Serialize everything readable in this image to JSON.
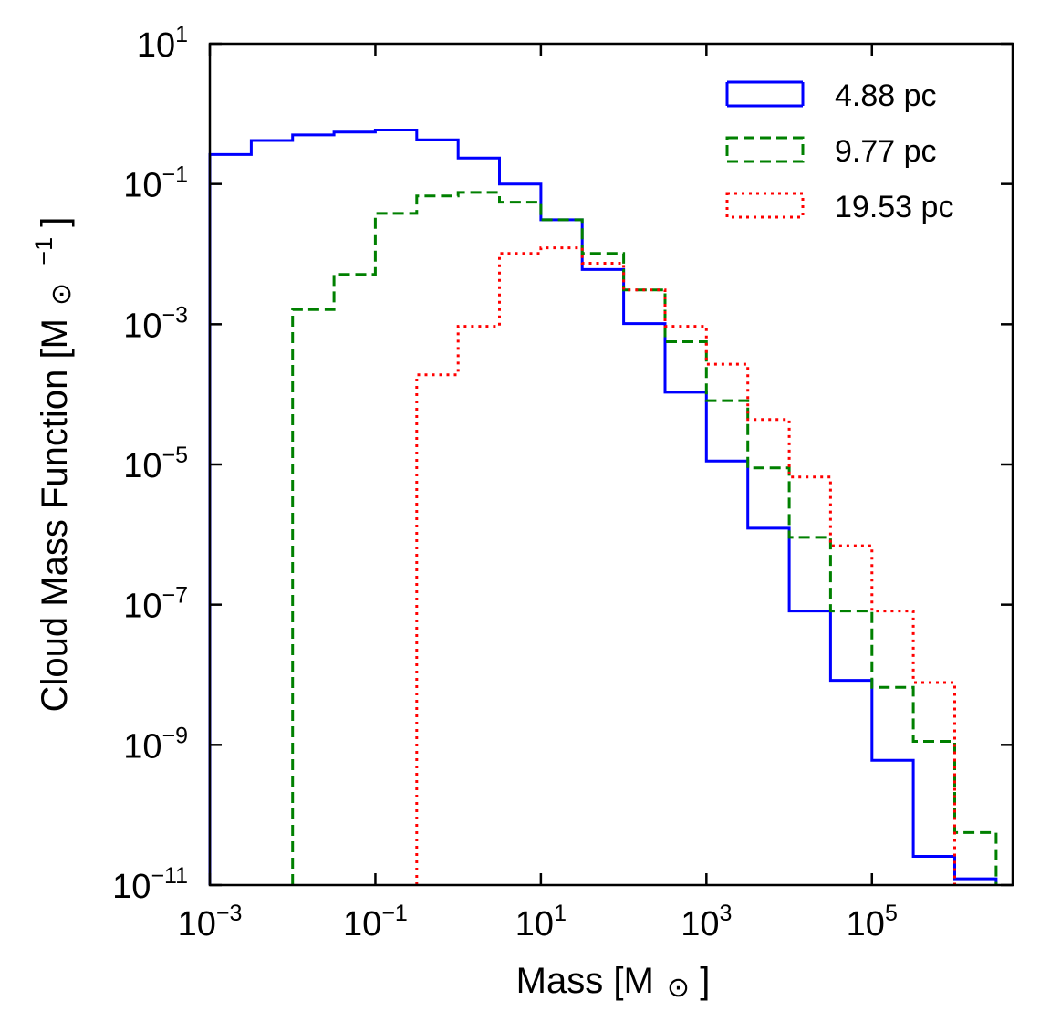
{
  "chart_data": {
    "type": "histogram-step",
    "xscale": "log",
    "yscale": "log",
    "xlim_exp": [
      -3,
      6.7
    ],
    "ylim_exp": [
      -11,
      1
    ],
    "x_ticks_exp": [
      -3,
      -1,
      1,
      3,
      5
    ],
    "y_ticks_exp": [
      -11,
      -9,
      -7,
      -5,
      -3,
      -1,
      1
    ],
    "tick_base": "10",
    "tick_minus": "−",
    "xlabel": "Mass [M",
    "xlabel_close": "]",
    "ylabel": "Cloud Mass Function [M",
    "ylabel_unit_exp": "−1",
    "ylabel_close": "]",
    "sun_symbol": "⊙",
    "legend_position": "top-right",
    "bin_width_dex": 0.5,
    "series": [
      {
        "name": "4.88 pc",
        "color": "#0000ff",
        "style": "solid",
        "start_exp": -3.0,
        "log_values": [
          -0.58,
          -0.38,
          -0.3,
          -0.26,
          -0.23,
          -0.37,
          -0.63,
          -1.0,
          -1.51,
          -2.22,
          -2.99,
          -3.97,
          -4.95,
          -5.91,
          -7.09,
          -8.08,
          -9.22,
          -10.59,
          -10.91
        ]
      },
      {
        "name": "9.77 pc",
        "color": "#008000",
        "style": "dashed",
        "start_exp": -2.0,
        "log_values": [
          -2.79,
          -2.29,
          -1.42,
          -1.17,
          -1.12,
          -1.26,
          -1.51,
          -1.99,
          -2.51,
          -3.25,
          -4.09,
          -5.05,
          -6.04,
          -7.09,
          -8.18,
          -8.95,
          -10.25
        ]
      },
      {
        "name": "19.53 pc",
        "color": "#ff0000",
        "style": "dotted",
        "start_exp": -0.5,
        "log_values": [
          -3.72,
          -3.03,
          -1.99,
          -1.91,
          -2.13,
          -2.51,
          -3.03,
          -3.57,
          -4.36,
          -5.18,
          -6.16,
          -7.09,
          -8.11
        ]
      }
    ]
  }
}
